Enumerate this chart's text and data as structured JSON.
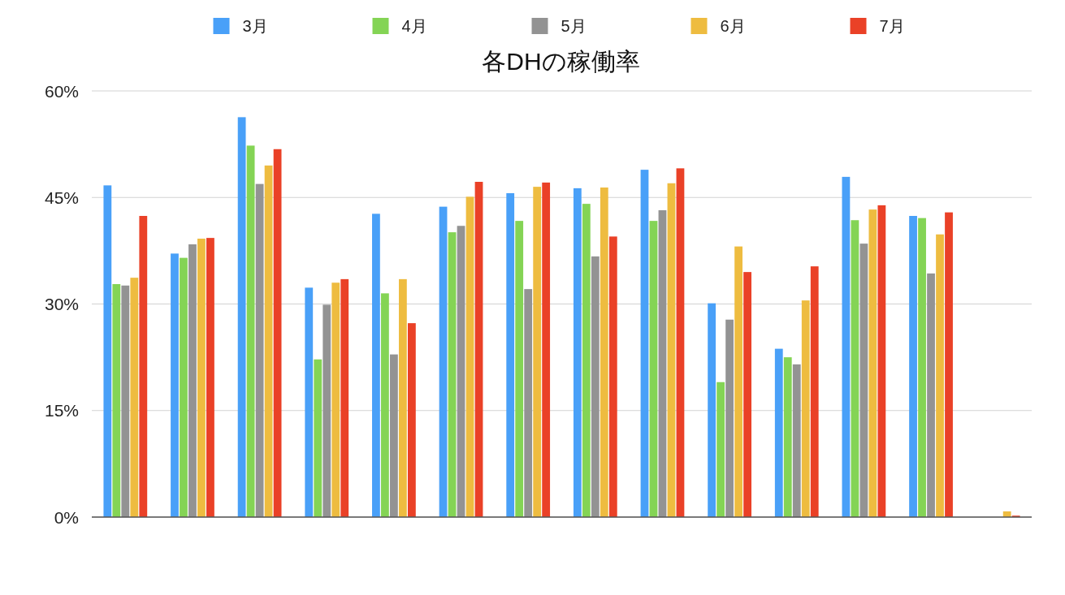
{
  "chart_data": {
    "type": "bar",
    "title": "各DHの稼働率",
    "categories": [
      null,
      null,
      null,
      null,
      null,
      null,
      null,
      null,
      null,
      null,
      null,
      null,
      null,
      null
    ],
    "series": [
      {
        "name": "3月",
        "color": "#49a0f8",
        "values": [
          46.7,
          37.1,
          56.3,
          32.3,
          42.7,
          43.7,
          45.6,
          46.3,
          48.9,
          30.1,
          23.7,
          47.9,
          42.4,
          null
        ]
      },
      {
        "name": "4月",
        "color": "#84d455",
        "values": [
          32.8,
          36.5,
          52.3,
          22.2,
          31.5,
          40.1,
          41.7,
          44.1,
          41.7,
          19.0,
          22.5,
          41.8,
          42.1,
          null
        ]
      },
      {
        "name": "5月",
        "color": "#939393",
        "values": [
          32.6,
          38.4,
          46.9,
          29.9,
          22.9,
          41.0,
          32.1,
          36.7,
          43.2,
          27.8,
          21.5,
          38.5,
          34.3,
          null
        ]
      },
      {
        "name": "6月",
        "color": "#eebc40",
        "values": [
          33.7,
          39.2,
          49.5,
          33.0,
          33.5,
          45.1,
          46.5,
          46.4,
          47.0,
          38.1,
          30.5,
          43.3,
          39.8,
          0.8
        ]
      },
      {
        "name": "7月",
        "color": "#ea4127",
        "values": [
          42.4,
          39.3,
          51.8,
          33.5,
          27.3,
          47.2,
          47.1,
          39.5,
          49.1,
          34.5,
          35.3,
          43.9,
          42.9,
          0.2
        ]
      }
    ],
    "ylim": [
      0,
      60
    ],
    "yticks": [
      {
        "value": 0,
        "label": "0%"
      },
      {
        "value": 15,
        "label": "15%"
      },
      {
        "value": 30,
        "label": "30%"
      },
      {
        "value": 45,
        "label": "45%"
      },
      {
        "value": 60,
        "label": "60%"
      }
    ],
    "grid": "y",
    "legend": "top",
    "tick_labels": "y"
  }
}
